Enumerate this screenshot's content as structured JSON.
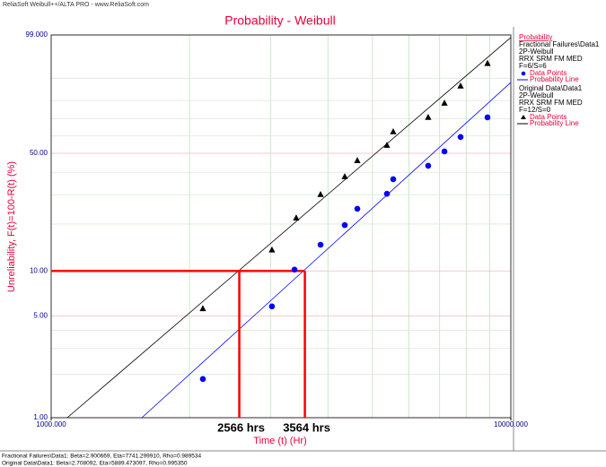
{
  "header": "ReliaSoft Weibull++/ALTA PRO - www.ReliaSoft.com",
  "chart_data": {
    "type": "probability",
    "title": "Probability - Weibull",
    "x_label": "Time (t) (Hr)",
    "y_label": "Unreliability, F(t)=100-R(t) (%)",
    "xscale": "log",
    "yscale": "weibull",
    "xlim": [
      1000,
      10000
    ],
    "xticks": [
      {
        "value": 1000,
        "label": "1000.000"
      },
      {
        "value": 10000,
        "label": "10000.000"
      }
    ],
    "ylim": [
      1,
      99
    ],
    "yticks": [
      {
        "value": 1,
        "label": "1.00"
      },
      {
        "value": 5,
        "label": "5.00"
      },
      {
        "value": 10,
        "label": "10.00"
      },
      {
        "value": 50,
        "label": "50.00"
      },
      {
        "value": 99,
        "label": "99.000"
      }
    ],
    "minor_xticks": [
      2000,
      3000,
      4000,
      5000,
      6000,
      7000,
      8000,
      9000
    ],
    "minor_yticks": [
      2,
      3,
      4,
      20,
      30,
      40,
      60,
      70,
      80,
      90
    ],
    "grid": true,
    "legend_title": "Probability",
    "series": [
      {
        "name": "Fractional Failures\\Data1",
        "details": [
          "2P-Weibull",
          "RRX SRM FM MED",
          "F=6/S=6"
        ],
        "points_label": "Data Points",
        "line_label": "Probability Line",
        "color": "#0000ff",
        "marker": "circle",
        "x": [
          2138,
          3022,
          3383,
          3855,
          4352,
          4635,
          5376,
          5548,
          6610,
          7171,
          7774,
          8897
        ],
        "values": [
          1.85,
          5.8,
          10.2,
          14.8,
          19.7,
          24.8,
          30.4,
          36.7,
          43.3,
          51.0,
          59.3,
          70.8
        ],
        "fit_line": {
          "x": [
            1575,
            10000
          ],
          "values": [
            1,
            88.4
          ]
        }
      },
      {
        "name": "Original Data\\Data1",
        "details": [
          "2P-Weibull",
          "RRX SRM FM MED",
          "F=12/S=0"
        ],
        "points_label": "Data Points",
        "line_label": "Probability Line",
        "color": "#000000",
        "marker": "triangle",
        "x": [
          2138,
          3022,
          3413,
          3855,
          4352,
          4635,
          5376,
          5548,
          6610,
          7171,
          7774,
          8897
        ],
        "values": [
          5.6,
          13.7,
          21.8,
          30.1,
          37.9,
          46.0,
          54.5,
          62.4,
          70.8,
          78.7,
          86.9,
          94.6
        ],
        "fit_line": {
          "x": [
            1084,
            10000
          ],
          "values": [
            1,
            98.8
          ]
        }
      }
    ],
    "reference": {
      "y": 10,
      "color": "#ff0000",
      "markers": [
        {
          "x": 2566,
          "label": "2566 hrs"
        },
        {
          "x": 3564,
          "label": "3564 hrs"
        }
      ]
    },
    "footer": [
      "Fractional Failures\\Data1: Beta=2.900669, Eta=7741.299910, Rho=0.989534",
      "Original Data\\Data1: Beta=2.708092, Eta=5889.473097, Rho=0.995350"
    ]
  }
}
